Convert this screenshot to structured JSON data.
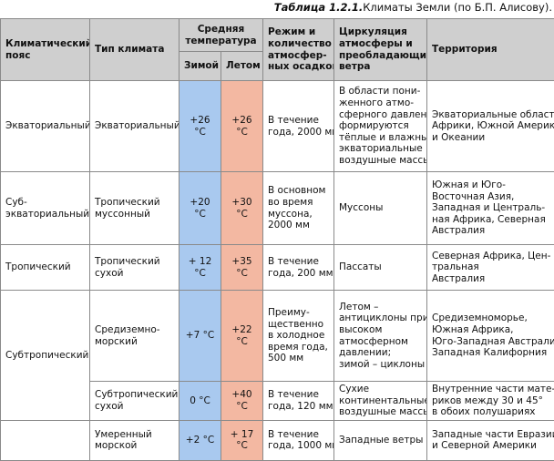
{
  "caption": {
    "number": "Таблица 1.2.1.",
    "text": "Климаты Земли (по Б.П. Алисову)."
  },
  "header": {
    "belt": [
      "Климатический",
      "пояс"
    ],
    "type": [
      "Тип климата"
    ],
    "temp": [
      "Средняя",
      "температура"
    ],
    "winter": "Зимой",
    "summer": "Летом",
    "regime": [
      "Режим и",
      "количество",
      "атмосфер-",
      "ных осадков"
    ],
    "circulation": [
      "Циркуляция",
      "атмосферы и",
      "преобладающие",
      "ветра"
    ],
    "territory": [
      "Территория"
    ]
  },
  "rows": [
    {
      "belt": [
        "Экваториальный"
      ],
      "type": [
        "Экваториальный"
      ],
      "winter": "+26 °C",
      "summer": "+26 °C",
      "regime": [
        "В течение",
        "года, 2000 мм"
      ],
      "circulation": [
        "В области пони-",
        "женного атмо-",
        "сферного давления",
        "формируются",
        "тёплые и влажные",
        "экваториальные",
        "воздушные массы"
      ],
      "territory": [
        "Экваториальные области",
        "Африки, Южной Америки",
        "и Океании"
      ]
    },
    {
      "belt": [
        "Суб-",
        "экваториальный"
      ],
      "type": [
        "Тропический",
        "муссонный"
      ],
      "winter": "+20 °C",
      "summer": "+30 °C",
      "regime": [
        "В основном",
        "во время",
        "муссона,",
        "2000 мм"
      ],
      "circulation": [
        "Муссоны"
      ],
      "territory": [
        "Южная и Юго-",
        "Восточная Азия,",
        "Западная и Централь-",
        "ная Африка, Северная",
        "Австралия"
      ]
    },
    {
      "belt": [
        "Тропический"
      ],
      "type": [
        "Тропический",
        "сухой"
      ],
      "winter": "+ 12 °C",
      "summer": "+35 °C",
      "regime": [
        "В течение",
        "года, 200 мм"
      ],
      "circulation": [
        "Пассаты"
      ],
      "territory": [
        "Северная Африка, Цен-",
        "тральная",
        "Австралия"
      ]
    },
    {
      "belt": [
        "Субтропический"
      ],
      "type": [
        "Средиземно-",
        "морский"
      ],
      "winter": "+7 °C",
      "summer": "+22 °C",
      "regime": [
        "Преиму-",
        "щественно",
        "в холодное",
        "время года,",
        "500 мм"
      ],
      "circulation": [
        "Летом –",
        "антициклоны при",
        "высоком",
        "атмосферном",
        "давлении;",
        "зимой – циклоны"
      ],
      "territory": [
        "Средиземноморье,",
        "Южная Африка,",
        "Юго-Западная Австралия,",
        "Западная Калифорния"
      ]
    },
    {
      "type": [
        "Субтропический",
        "сухой"
      ],
      "winter": "0 °C",
      "summer": "+40 °C",
      "regime": [
        "В течение",
        "года, 120 мм"
      ],
      "circulation": [
        "Сухие",
        "континентальные",
        "воздушные массы"
      ],
      "territory": [
        "Внутренние части мате-",
        "риков между 30 и 45°",
        "в обоих полушариях"
      ]
    },
    {
      "type": [
        "Умеренный",
        "морской"
      ],
      "winter": "+2 °C",
      "summer": "+ 17 °C",
      "regime": [
        "В течение",
        "года, 1000 мм"
      ],
      "circulation": [
        "Западные ветры"
      ],
      "territory": [
        "Западные части Евразии",
        "и Северной Америки"
      ]
    }
  ]
}
